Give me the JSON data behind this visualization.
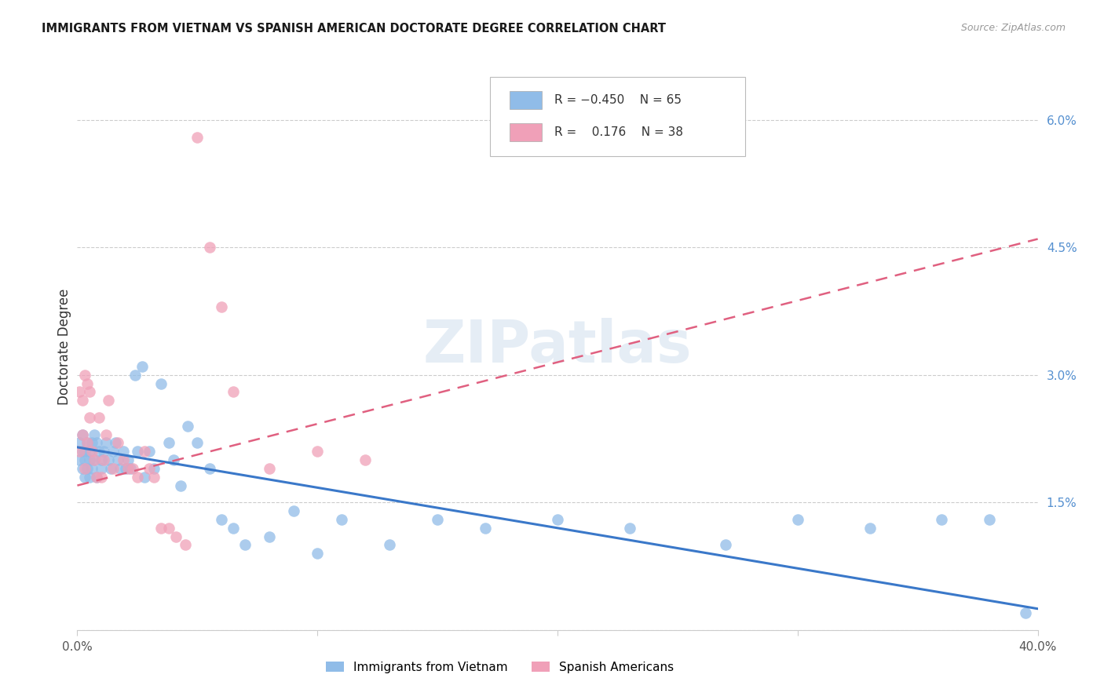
{
  "title": "IMMIGRANTS FROM VIETNAM VS SPANISH AMERICAN DOCTORATE DEGREE CORRELATION CHART",
  "source": "Source: ZipAtlas.com",
  "ylabel": "Doctorate Degree",
  "xlim": [
    0.0,
    0.4
  ],
  "ylim": [
    0.0,
    0.0667
  ],
  "legend_label1": "Immigrants from Vietnam",
  "legend_label2": "Spanish Americans",
  "color_blue": "#90bce8",
  "color_pink": "#f0a0b8",
  "color_line_blue": "#3a78c9",
  "color_line_pink": "#e06080",
  "ytick_vals": [
    0.0,
    0.015,
    0.03,
    0.045,
    0.06
  ],
  "yticklabels_right": [
    "",
    "1.5%",
    "3.0%",
    "4.5%",
    "6.0%"
  ],
  "watermark": "ZIPatlas",
  "bg_color": "#ffffff",
  "grid_color": "#cccccc",
  "blue_x": [
    0.001,
    0.001,
    0.002,
    0.002,
    0.002,
    0.003,
    0.003,
    0.003,
    0.004,
    0.004,
    0.005,
    0.005,
    0.005,
    0.006,
    0.006,
    0.007,
    0.007,
    0.008,
    0.008,
    0.009,
    0.01,
    0.01,
    0.011,
    0.012,
    0.013,
    0.014,
    0.015,
    0.016,
    0.017,
    0.018,
    0.019,
    0.02,
    0.021,
    0.022,
    0.024,
    0.025,
    0.027,
    0.028,
    0.03,
    0.032,
    0.035,
    0.038,
    0.04,
    0.043,
    0.046,
    0.05,
    0.055,
    0.06,
    0.065,
    0.07,
    0.08,
    0.09,
    0.1,
    0.11,
    0.13,
    0.15,
    0.17,
    0.2,
    0.23,
    0.27,
    0.3,
    0.33,
    0.36,
    0.38,
    0.395
  ],
  "blue_y": [
    0.02,
    0.022,
    0.021,
    0.019,
    0.023,
    0.021,
    0.02,
    0.018,
    0.022,
    0.019,
    0.021,
    0.02,
    0.018,
    0.022,
    0.019,
    0.023,
    0.02,
    0.022,
    0.018,
    0.021,
    0.02,
    0.019,
    0.021,
    0.022,
    0.02,
    0.019,
    0.021,
    0.022,
    0.02,
    0.019,
    0.021,
    0.019,
    0.02,
    0.019,
    0.03,
    0.021,
    0.031,
    0.018,
    0.021,
    0.019,
    0.029,
    0.022,
    0.02,
    0.017,
    0.024,
    0.022,
    0.019,
    0.013,
    0.012,
    0.01,
    0.011,
    0.014,
    0.009,
    0.013,
    0.01,
    0.013,
    0.012,
    0.013,
    0.012,
    0.01,
    0.013,
    0.012,
    0.013,
    0.013,
    0.002
  ],
  "pink_x": [
    0.001,
    0.001,
    0.002,
    0.002,
    0.003,
    0.003,
    0.004,
    0.004,
    0.005,
    0.005,
    0.006,
    0.007,
    0.008,
    0.009,
    0.01,
    0.011,
    0.012,
    0.013,
    0.015,
    0.017,
    0.019,
    0.021,
    0.023,
    0.025,
    0.028,
    0.03,
    0.032,
    0.035,
    0.038,
    0.041,
    0.045,
    0.05,
    0.055,
    0.06,
    0.065,
    0.08,
    0.1,
    0.12
  ],
  "pink_y": [
    0.021,
    0.028,
    0.027,
    0.023,
    0.019,
    0.03,
    0.022,
    0.029,
    0.028,
    0.025,
    0.021,
    0.02,
    0.018,
    0.025,
    0.018,
    0.02,
    0.023,
    0.027,
    0.019,
    0.022,
    0.02,
    0.019,
    0.019,
    0.018,
    0.021,
    0.019,
    0.018,
    0.012,
    0.012,
    0.011,
    0.01,
    0.058,
    0.045,
    0.038,
    0.028,
    0.019,
    0.021,
    0.02
  ],
  "blue_line_x": [
    0.0,
    0.4
  ],
  "blue_line_y": [
    0.0215,
    0.0025
  ],
  "pink_line_x": [
    0.0,
    0.4
  ],
  "pink_line_y": [
    0.017,
    0.046
  ]
}
